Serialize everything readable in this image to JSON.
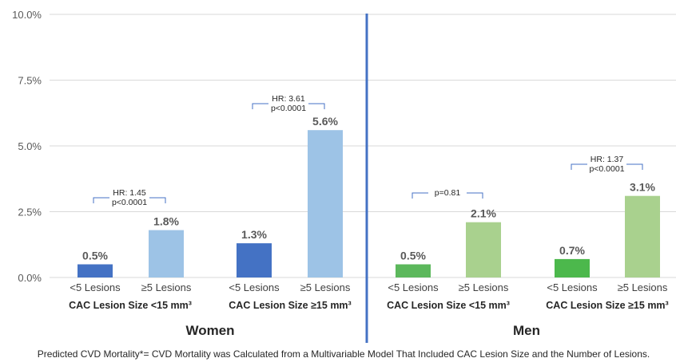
{
  "chart_data": {
    "type": "bar",
    "ylim": [
      0,
      10
    ],
    "y_ticks": [
      "0.0%",
      "2.5%",
      "5.0%",
      "7.5%",
      "10.0%"
    ],
    "grid": true,
    "legend": "none",
    "bars": [
      {
        "panel": "Women",
        "group": "CAC Lesion Size <15 mm³",
        "category": "<5 Lesions",
        "value": 0.5,
        "label": "0.5%",
        "color": "#4472C4"
      },
      {
        "panel": "Women",
        "group": "CAC Lesion Size <15 mm³",
        "category": "≥5 Lesions",
        "value": 1.8,
        "label": "1.8%",
        "color": "#9DC3E6"
      },
      {
        "panel": "Women",
        "group": "CAC Lesion Size ≥15 mm³",
        "category": "<5 Lesions",
        "value": 1.3,
        "label": "1.3%",
        "color": "#4472C4"
      },
      {
        "panel": "Women",
        "group": "CAC Lesion Size ≥15 mm³",
        "category": "≥5 Lesions",
        "value": 5.6,
        "label": "5.6%",
        "color": "#9DC3E6"
      },
      {
        "panel": "Men",
        "group": "CAC Lesion Size <15 mm³",
        "category": "<5 Lesions",
        "value": 0.5,
        "label": "0.5%",
        "color": "#5CB85C"
      },
      {
        "panel": "Men",
        "group": "CAC Lesion Size <15 mm³",
        "category": "≥5 Lesions",
        "value": 2.1,
        "label": "2.1%",
        "color": "#A9D18E"
      },
      {
        "panel": "Men",
        "group": "CAC Lesion Size ≥15 mm³",
        "category": "<5 Lesions",
        "value": 0.7,
        "label": "0.7%",
        "color": "#4CB84C"
      },
      {
        "panel": "Men",
        "group": "CAC Lesion Size ≥15 mm³",
        "category": "≥5 Lesions",
        "value": 3.1,
        "label": "3.1%",
        "color": "#A9D18E"
      }
    ],
    "group_labels": [
      {
        "text": "CAC Lesion Size <15 mm³"
      },
      {
        "text": "CAC Lesion Size ≥15 mm³"
      },
      {
        "text": "CAC Lesion Size <15 mm³"
      },
      {
        "text": "CAC Lesion Size ≥15 mm³"
      }
    ],
    "panels": [
      "Women",
      "Men"
    ],
    "annotations": [
      {
        "lines": [
          "HR: 1.45",
          "p<0.0001"
        ]
      },
      {
        "lines": [
          "HR: 3.61",
          "p<0.0001"
        ]
      },
      {
        "lines": [
          "p=0.81"
        ]
      },
      {
        "lines": [
          "HR: 1.37",
          "p<0.0001"
        ]
      }
    ],
    "footnote": "Predicted CVD Mortality*= CVD Mortality was Calculated from a Multivariable Model That Included CAC Lesion Size and the Number of Lesions."
  }
}
